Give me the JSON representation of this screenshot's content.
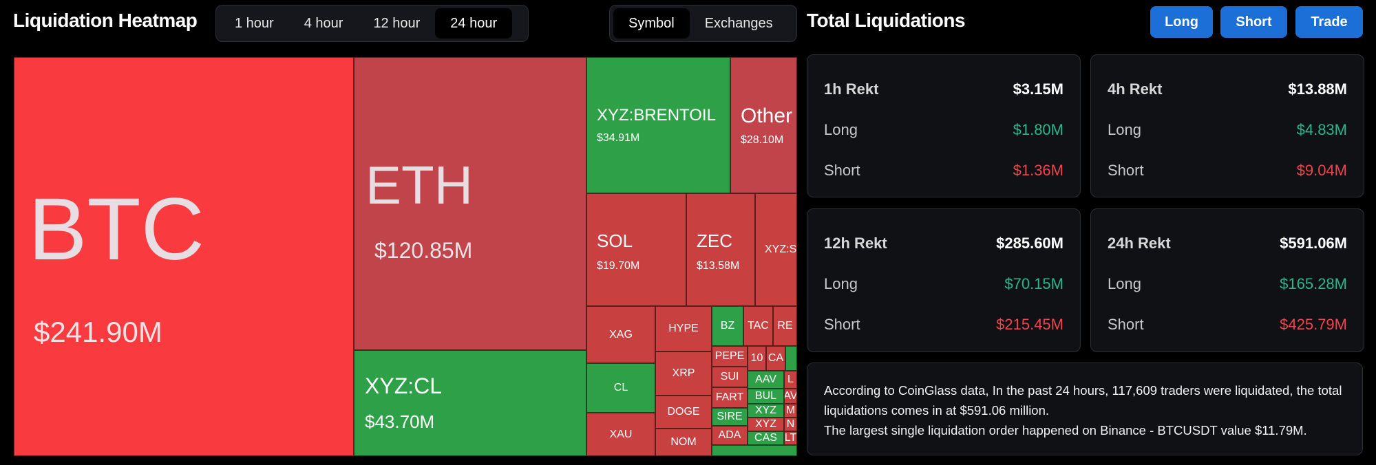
{
  "heatmap": {
    "title": "Liquidation Heatmap",
    "time_options": [
      "1 hour",
      "4 hour",
      "12 hour",
      "24 hour"
    ],
    "time_selected": "24 hour",
    "view_options": [
      "Symbol",
      "Exchanges"
    ],
    "view_selected": "Symbol",
    "tiles": {
      "btc": {
        "symbol": "BTC",
        "value": "$241.90M"
      },
      "eth": {
        "symbol": "ETH",
        "value": "$120.85M"
      },
      "xyzcl": {
        "symbol": "XYZ:CL",
        "value": "$43.70M"
      },
      "brent": {
        "symbol": "XYZ:BRENTOIL",
        "value": "$34.91M"
      },
      "other": {
        "symbol": "Other",
        "value": "$28.10M"
      },
      "sol": {
        "symbol": "SOL",
        "value": "$19.70M"
      },
      "zec": {
        "symbol": "ZEC",
        "value": "$13.58M"
      },
      "xyzs": {
        "symbol": "XYZ:S"
      },
      "xag": {
        "symbol": "XAG"
      },
      "hype": {
        "symbol": "HYPE"
      },
      "bz": {
        "symbol": "BZ"
      },
      "tac": {
        "symbol": "TAC"
      },
      "re": {
        "symbol": "RE"
      },
      "cl": {
        "symbol": "CL"
      },
      "xrp": {
        "symbol": "XRP"
      },
      "pepe": {
        "symbol": "PEPE"
      },
      "ten": {
        "symbol": "10"
      },
      "ca": {
        "symbol": "CA"
      },
      "sui": {
        "symbol": "SUI"
      },
      "aav": {
        "symbol": "AAV"
      },
      "l": {
        "symbol": "L"
      },
      "xau": {
        "symbol": "XAU"
      },
      "doge": {
        "symbol": "DOGE"
      },
      "fart": {
        "symbol": "FART"
      },
      "bul": {
        "symbol": "BUL"
      },
      "av": {
        "symbol": "AV"
      },
      "nom": {
        "symbol": "NOM"
      },
      "sire": {
        "symbol": "SIRE"
      },
      "xyz": {
        "symbol": "XYZ"
      },
      "m": {
        "symbol": "M"
      },
      "ada": {
        "symbol": "ADA"
      },
      "xyz2": {
        "symbol": "XYZ"
      },
      "n": {
        "symbol": "N"
      },
      "cas": {
        "symbol": "CAS"
      },
      "lt": {
        "symbol": "LT"
      }
    }
  },
  "liquidations": {
    "title": "Total Liquidations",
    "buttons": {
      "long": "Long",
      "short": "Short",
      "trade": "Trade"
    },
    "cards": [
      {
        "label": "1h Rekt",
        "total": "$3.15M",
        "long_label": "Long",
        "long": "$1.80M",
        "short_label": "Short",
        "short": "$1.36M"
      },
      {
        "label": "4h Rekt",
        "total": "$13.88M",
        "long_label": "Long",
        "long": "$4.83M",
        "short_label": "Short",
        "short": "$9.04M"
      },
      {
        "label": "12h Rekt",
        "total": "$285.60M",
        "long_label": "Long",
        "long": "$70.15M",
        "short_label": "Short",
        "short": "$215.45M"
      },
      {
        "label": "24h Rekt",
        "total": "$591.06M",
        "long_label": "Long",
        "long": "$165.28M",
        "short_label": "Short",
        "short": "$425.79M"
      }
    ],
    "summary_line1": "According to CoinGlass data, In the past 24 hours, 117,609 traders were liquidated, the total liquidations comes in at $591.06 million.",
    "summary_line2": "The largest single liquidation order happened on Binance - BTCUSDT value $11.79M."
  },
  "colors": {
    "accent": "#1c6fd6",
    "long": "#27b98a",
    "short": "#f0444d",
    "tile_red": "#c0444a",
    "tile_bright_red": "#f93a3f",
    "tile_green": "#2ea148"
  }
}
